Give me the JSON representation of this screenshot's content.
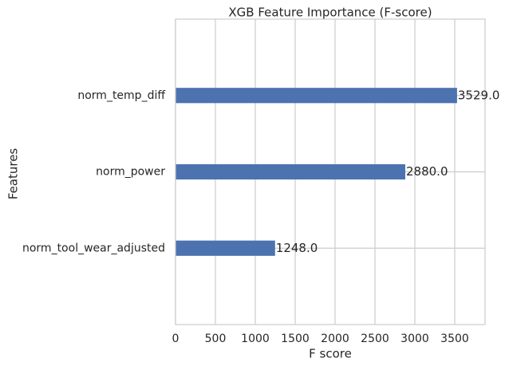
{
  "chart_data": {
    "type": "bar",
    "orientation": "horizontal",
    "title": "XGB Feature Importance (F-score)",
    "xlabel": "F score",
    "ylabel": "Features",
    "categories": [
      "norm_temp_diff",
      "norm_power",
      "norm_tool_wear_adjusted"
    ],
    "values": [
      3529.0,
      2880.0,
      1248.0
    ],
    "value_labels": [
      "3529.0",
      "2880.0",
      "1248.0"
    ],
    "xlim": [
      0,
      3880
    ],
    "xticks": [
      0,
      500,
      1000,
      1500,
      2000,
      2500,
      3000,
      3500
    ],
    "xtick_labels": [
      "0",
      "500",
      "1000",
      "1500",
      "2000",
      "2500",
      "3000",
      "3500"
    ],
    "grid": true,
    "colors": {
      "bar": "#4c72b0",
      "grid": "#cccccc",
      "axes_edge": "#cccccc",
      "text": "#262626",
      "background": "#ffffff"
    }
  }
}
